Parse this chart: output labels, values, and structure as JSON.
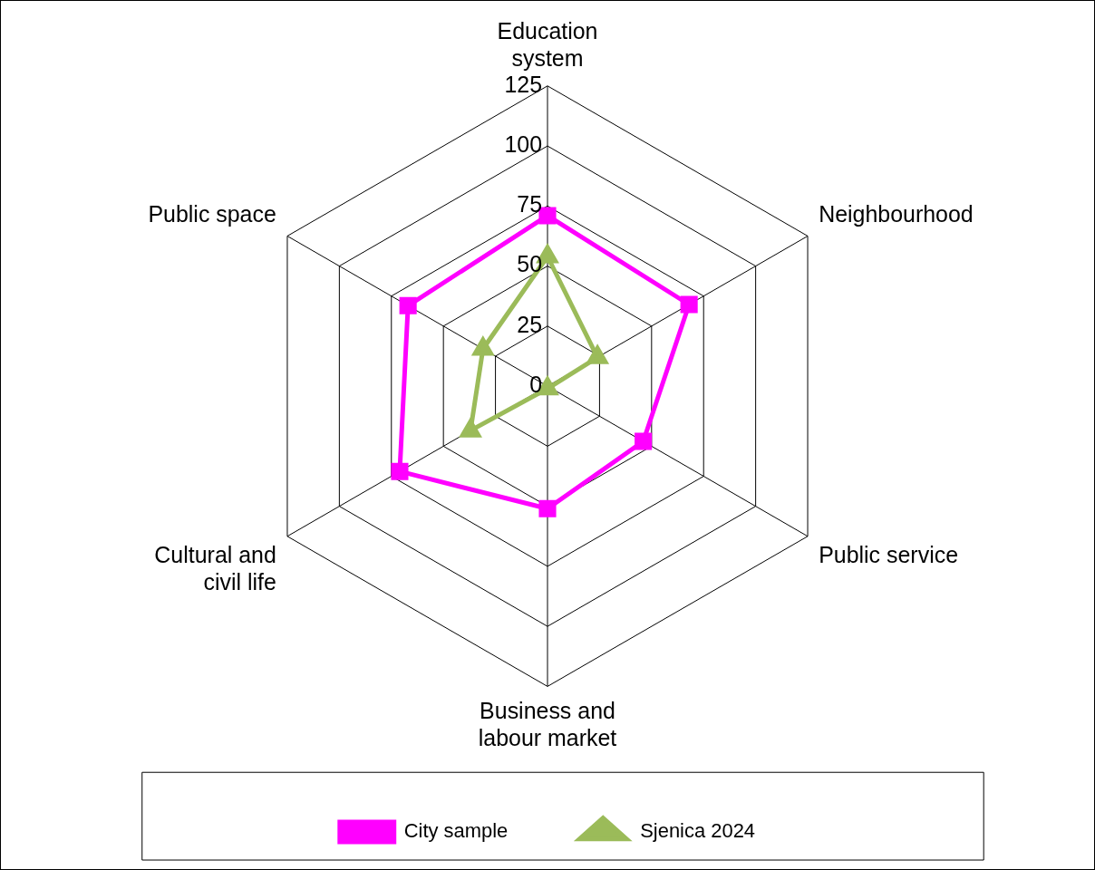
{
  "chart_data": {
    "type": "radar",
    "categories": [
      "Education system",
      "Neighbourhood",
      "Public service",
      "Business and labour market",
      "Cultural and civil life",
      "Public space"
    ],
    "series": [
      {
        "name": "City sample",
        "color": "#ff00ff",
        "marker": "square",
        "values": [
          71,
          68,
          46,
          51,
          71,
          67
        ]
      },
      {
        "name": "Sjenica 2024",
        "color": "#9bbb59",
        "marker": "triangle",
        "values": [
          54,
          24,
          null,
          1,
          37,
          31
        ]
      }
    ],
    "ylim": [
      0,
      125
    ],
    "yticks": [
      0,
      25,
      50,
      75,
      100,
      125
    ],
    "grid": true,
    "legend": "bottom"
  }
}
